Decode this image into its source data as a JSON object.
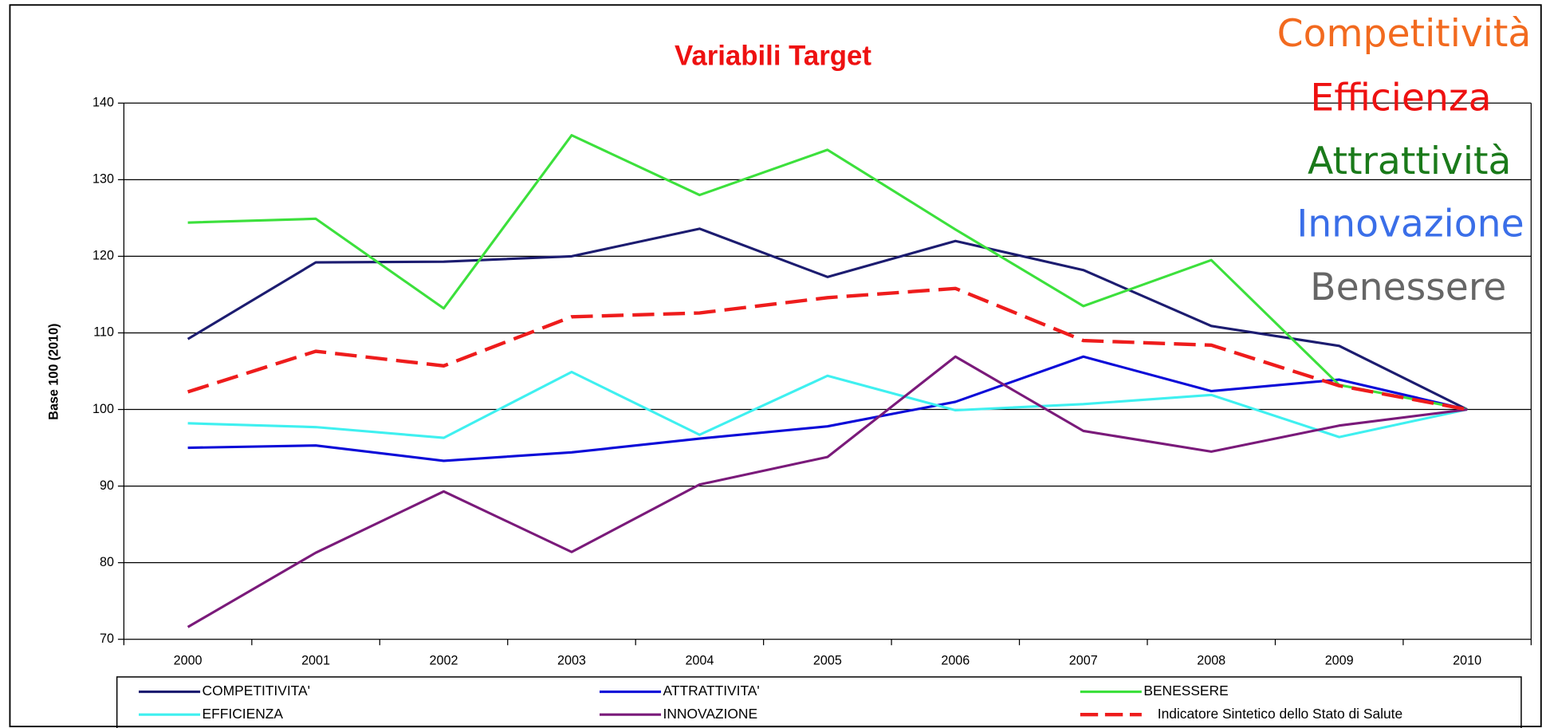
{
  "chart_data": {
    "type": "line",
    "title": "Variabili Target",
    "ylabel": "Base 100 (2010)",
    "categories": [
      "2000",
      "2001",
      "2002",
      "2003",
      "2004",
      "2005",
      "2006",
      "2007",
      "2008",
      "2009",
      "2010"
    ],
    "ylim": [
      70,
      140
    ],
    "yticks": [
      70,
      80,
      90,
      100,
      110,
      120,
      130,
      140
    ],
    "grid": true,
    "series": [
      {
        "name": "COMPETITIVITA'",
        "color": "#1c1c70",
        "values": [
          109.2,
          119.2,
          119.3,
          120,
          123.6,
          117.3,
          122,
          118.2,
          110.9,
          108.3,
          100
        ]
      },
      {
        "name": "ATTRATTIVITA'",
        "color": "#0a0ad8",
        "values": [
          95,
          95.3,
          93.3,
          94.4,
          96.2,
          97.8,
          101,
          106.9,
          102.4,
          103.9,
          100
        ]
      },
      {
        "name": "BENESSERE",
        "color": "#3ce03c",
        "values": [
          124.4,
          124.9,
          113.2,
          135.8,
          128,
          133.9,
          123.5,
          113.5,
          119.5,
          103.2,
          100
        ]
      },
      {
        "name": "EFFICIENZA",
        "color": "#3ff0f0",
        "values": [
          98.2,
          97.7,
          96.3,
          104.9,
          96.7,
          104.4,
          99.9,
          100.7,
          101.9,
          96.4,
          100
        ]
      },
      {
        "name": "INNOVAZIONE",
        "color": "#7a1a7a",
        "values": [
          71.6,
          81.3,
          89.3,
          81.4,
          90.2,
          93.8,
          106.9,
          97.2,
          94.5,
          97.9,
          100
        ]
      },
      {
        "name": "Indicatore Sintetico dello Stato di Salute",
        "color": "#ee1c1c",
        "dashed": true,
        "values": [
          102.3,
          107.6,
          105.7,
          112.1,
          112.6,
          114.6,
          115.8,
          109,
          108.4,
          103.1,
          100
        ]
      }
    ],
    "annotations": [
      {
        "text": "Competitività",
        "color": "#f26a1f"
      },
      {
        "text": "Efficienza",
        "color": "#ee1111"
      },
      {
        "text": "Attrattività",
        "color": "#1a7a1a"
      },
      {
        "text": "Innovazione",
        "color": "#3a6ee8"
      },
      {
        "text": "Benessere",
        "color": "#666666"
      }
    ]
  }
}
